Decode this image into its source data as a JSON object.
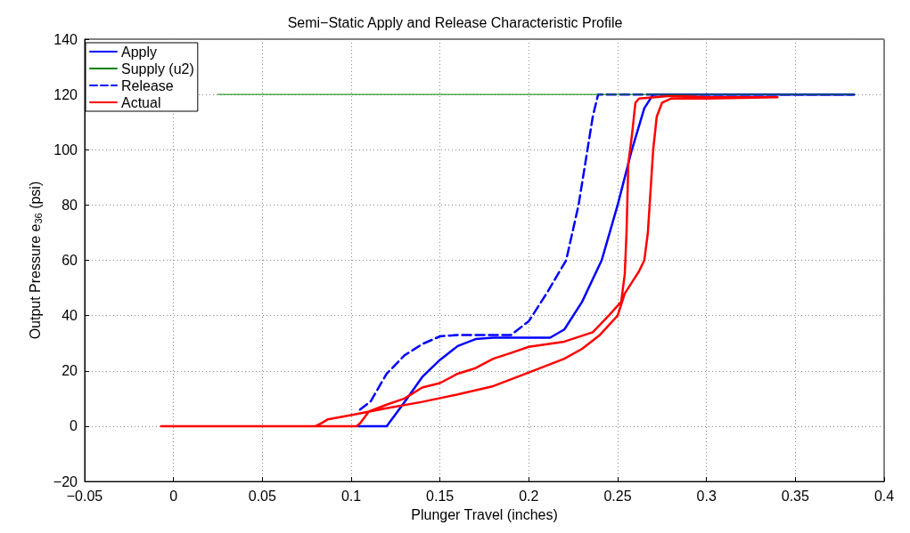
{
  "chart_data": {
    "type": "line",
    "title": "Semi−Static Apply and Release Characteristic Profile",
    "xlabel": "Plunger Travel (inches)",
    "ylabel": "Output Pressure e$_{36}$ (psi)",
    "xlim": [
      -0.05,
      0.4
    ],
    "xticks": [
      {
        "value": -0.05,
        "label": "−0.05"
      },
      0,
      0.05,
      0.1,
      0.15,
      0.2,
      0.25,
      0.3,
      0.35,
      0.4
    ],
    "ylim": [
      -20,
      140
    ],
    "yticks": [
      {
        "value": -20,
        "label": "−20"
      },
      0,
      20,
      40,
      60,
      80,
      100,
      120,
      140
    ],
    "grid": true,
    "legend": "top left",
    "marker": "none",
    "series": [
      {
        "name": "Apply",
        "color": "#0000ff",
        "line_style": "solid",
        "x": [
          0.104,
          0.12,
          0.13,
          0.14,
          0.15,
          0.16,
          0.17,
          0.18,
          0.212,
          0.22,
          0.23,
          0.241,
          0.25,
          0.258,
          0.265,
          0.27,
          0.383
        ],
        "values": [
          0,
          0,
          8.7,
          17.8,
          24,
          29,
          31.5,
          32,
          32,
          35,
          45,
          60,
          80,
          100,
          115,
          120,
          120
        ]
      },
      {
        "name": "Supply (u2)",
        "color": "#008000",
        "line_style": "solid",
        "x": [
          0.025,
          0.383
        ],
        "values": [
          120,
          120
        ]
      },
      {
        "name": "Release",
        "color": "#0000ff",
        "line_style": "dashed",
        "x": [
          0.105,
          0.111,
          0.12,
          0.13,
          0.14,
          0.15,
          0.16,
          0.19,
          0.2,
          0.21,
          0.221,
          0.228,
          0.233,
          0.236,
          0.239,
          0.383
        ],
        "values": [
          6,
          9,
          19,
          25.6,
          29.7,
          32.5,
          33,
          33,
          38,
          48,
          60,
          80,
          100,
          112,
          120,
          120
        ]
      },
      {
        "name": "Actual",
        "color": "#ff0000",
        "line_style": "solid",
        "x": [
          -0.007,
          0.08,
          0.083,
          0.087,
          0.1,
          0.12,
          0.14,
          0.16,
          0.18,
          0.2,
          0.22,
          0.23,
          0.24,
          0.25,
          0.254,
          0.258,
          0.262,
          0.265,
          0.267,
          0.268,
          0.27,
          0.272,
          0.275,
          0.28,
          0.3,
          0.34,
          0.3,
          0.28,
          0.262,
          0.26,
          0.258,
          0.256,
          0.255,
          0.254,
          0.252,
          0.245,
          0.236,
          0.22,
          0.2,
          0.19,
          0.18,
          0.17,
          0.16,
          0.15,
          0.14,
          0.13,
          0.12,
          0.11,
          0.105,
          0.103,
          0
        ],
        "values": [
          0,
          0,
          1,
          2.5,
          4,
          6.5,
          8.8,
          11.5,
          14.5,
          19.4,
          24.4,
          28,
          33,
          40,
          48,
          52,
          56,
          60,
          70,
          80,
          100,
          112,
          117,
          118.5,
          118.5,
          119,
          119,
          119.5,
          118.5,
          117,
          105,
          95,
          70,
          55,
          45,
          40,
          34,
          30.6,
          28.7,
          26.5,
          24.4,
          21,
          19,
          15.6,
          14,
          10,
          7.8,
          5.3,
          1,
          0,
          0
        ]
      }
    ]
  }
}
